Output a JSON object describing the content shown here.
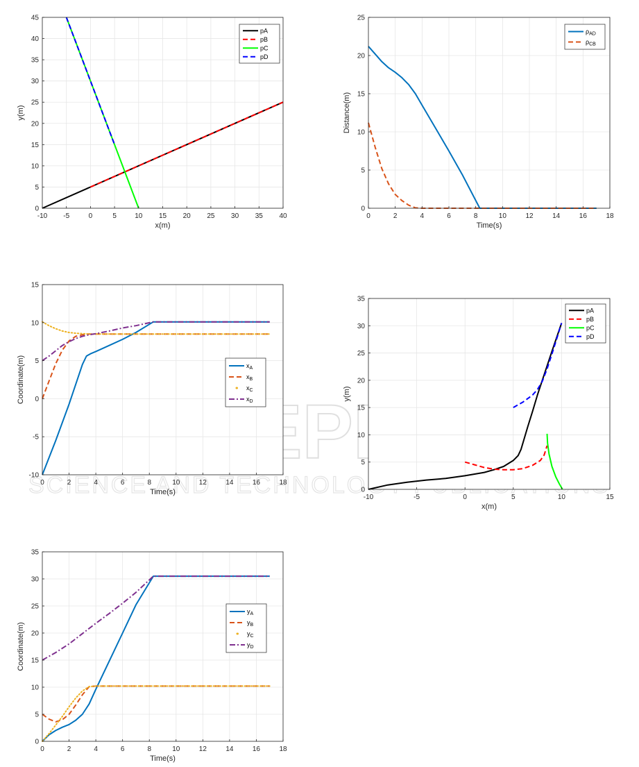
{
  "watermark": {
    "main": "SCITEPRESS",
    "sub": "SCIENCE AND TECHNOLOGY PUBLICATIONS"
  },
  "colors": {
    "black": "#000000",
    "red": "#ff0000",
    "green": "#00ff00",
    "blue": "#0000ff",
    "mblue": "#0072bd",
    "morange": "#d95319",
    "myellow": "#edb120",
    "mpurple": "#7e2f8e"
  },
  "chart_data": [
    {
      "id": "c1",
      "type": "line",
      "title": "",
      "xlabel": "x(m)",
      "ylabel": "y(m)",
      "xlim": [
        -10,
        40
      ],
      "ylim": [
        0,
        45
      ],
      "xticks": [
        -10,
        -5,
        0,
        5,
        10,
        15,
        20,
        25,
        30,
        35,
        40
      ],
      "yticks": [
        0,
        5,
        10,
        15,
        20,
        25,
        30,
        35,
        40,
        45
      ],
      "grid": true,
      "legend": "top-right",
      "series": [
        {
          "name": "pA",
          "legend": [
            {
              "t": "pA"
            }
          ],
          "color": "#000000",
          "style": "solid",
          "x": [
            -10,
            40
          ],
          "y": [
            0,
            25
          ]
        },
        {
          "name": "pB",
          "legend": [
            {
              "t": "pB"
            }
          ],
          "color": "#ff0000",
          "style": "dashed",
          "x": [
            0,
            40
          ],
          "y": [
            5,
            25
          ]
        },
        {
          "name": "pC",
          "legend": [
            {
              "t": "pC"
            }
          ],
          "color": "#00ff00",
          "style": "solid",
          "x": [
            -5,
            10
          ],
          "y": [
            45,
            0
          ]
        },
        {
          "name": "pD",
          "legend": [
            {
              "t": "pD"
            }
          ],
          "color": "#0000ff",
          "style": "dashed",
          "x": [
            -5,
            5
          ],
          "y": [
            45,
            15
          ]
        }
      ]
    },
    {
      "id": "c2",
      "type": "line",
      "title": "",
      "xlabel": "Time(s)",
      "ylabel": "Distance(m)",
      "xlim": [
        0,
        18
      ],
      "ylim": [
        0,
        25
      ],
      "xticks": [
        0,
        2,
        4,
        6,
        8,
        10,
        12,
        14,
        16,
        18
      ],
      "yticks": [
        0,
        5,
        10,
        15,
        20,
        25
      ],
      "grid": true,
      "legend": "top-right",
      "series": [
        {
          "name": "ρAD",
          "legend": [
            {
              "t": "ρ"
            },
            {
              "t": "AD",
              "sub": true
            }
          ],
          "color": "#0072bd",
          "style": "solid",
          "x": [
            0,
            0.5,
            1,
            1.5,
            2,
            2.5,
            3,
            3.5,
            4,
            5,
            6,
            7,
            8.3,
            10,
            12,
            14,
            16,
            17
          ],
          "y": [
            21.2,
            20.2,
            19.2,
            18.4,
            17.8,
            17.1,
            16.2,
            15,
            13.5,
            10.5,
            7.5,
            4.4,
            0,
            0,
            0,
            0,
            0,
            0
          ]
        },
        {
          "name": "ρCB",
          "legend": [
            {
              "t": "ρ"
            },
            {
              "t": "CB",
              "sub": true
            }
          ],
          "color": "#d95319",
          "style": "dashed",
          "x": [
            0,
            0.5,
            1,
            1.5,
            2,
            2.5,
            3,
            3.5,
            4,
            6,
            8,
            10,
            12,
            14,
            16,
            17
          ],
          "y": [
            11.2,
            8,
            5.2,
            3.2,
            1.8,
            1,
            0.4,
            0.05,
            0,
            0,
            0,
            0,
            0,
            0,
            0,
            0
          ]
        }
      ]
    },
    {
      "id": "c3",
      "type": "line",
      "title": "",
      "xlabel": "Time(s)",
      "ylabel": "Coordinate(m)",
      "xlim": [
        0,
        18
      ],
      "ylim": [
        -10,
        15
      ],
      "xticks": [
        0,
        2,
        4,
        6,
        8,
        10,
        12,
        14,
        16,
        18
      ],
      "yticks": [
        -10,
        -5,
        0,
        5,
        10,
        15
      ],
      "grid": true,
      "legend": "right",
      "series": [
        {
          "name": "xA",
          "legend": [
            {
              "t": "x"
            },
            {
              "t": "A",
              "sub": true
            }
          ],
          "color": "#0072bd",
          "style": "solid",
          "x": [
            0,
            1,
            2,
            3,
            3.3,
            3.6,
            4,
            5,
            6,
            7,
            8.3,
            10,
            12,
            14,
            16,
            17
          ],
          "y": [
            -10,
            -5.5,
            -0.7,
            4.5,
            5.6,
            5.9,
            6.2,
            7,
            7.8,
            8.7,
            10.1,
            10.1,
            10.1,
            10.1,
            10.1,
            10.1
          ]
        },
        {
          "name": "xB",
          "legend": [
            {
              "t": "x"
            },
            {
              "t": "B",
              "sub": true
            }
          ],
          "color": "#d95319",
          "style": "dashed",
          "x": [
            0,
            0.5,
            1,
            1.5,
            2,
            2.5,
            3,
            3.5,
            4,
            6,
            8,
            10,
            12,
            14,
            16,
            17
          ],
          "y": [
            0,
            2.3,
            4.6,
            6.4,
            7.6,
            8.2,
            8.4,
            8.5,
            8.5,
            8.5,
            8.5,
            8.5,
            8.5,
            8.5,
            8.5,
            8.5
          ]
        },
        {
          "name": "xC",
          "legend": [
            {
              "t": "x"
            },
            {
              "t": "C",
              "sub": true
            }
          ],
          "color": "#edb120",
          "style": "dotted",
          "x": [
            0,
            0.5,
            1,
            1.5,
            2,
            2.5,
            3,
            3.5,
            4,
            6,
            8,
            10,
            12,
            14,
            16,
            17
          ],
          "y": [
            10.1,
            9.6,
            9.2,
            8.9,
            8.7,
            8.6,
            8.55,
            8.5,
            8.5,
            8.5,
            8.5,
            8.5,
            8.5,
            8.5,
            8.5,
            8.5
          ]
        },
        {
          "name": "xD",
          "legend": [
            {
              "t": "x"
            },
            {
              "t": "D",
              "sub": true
            }
          ],
          "color": "#7e2f8e",
          "style": "dashdot",
          "x": [
            0,
            0.5,
            1,
            1.5,
            2,
            2.5,
            3,
            3.5,
            4,
            5,
            6,
            7,
            8.3,
            10,
            12,
            14,
            16,
            17
          ],
          "y": [
            5,
            5.6,
            6.3,
            7,
            7.5,
            7.9,
            8.2,
            8.4,
            8.55,
            8.9,
            9.3,
            9.6,
            10.1,
            10.1,
            10.1,
            10.1,
            10.1,
            10.1
          ]
        }
      ]
    },
    {
      "id": "c4",
      "type": "line",
      "title": "",
      "xlabel": "x(m)",
      "ylabel": "y(m)",
      "xlim": [
        -10,
        15
      ],
      "ylim": [
        0,
        35
      ],
      "xticks": [
        -10,
        -5,
        0,
        5,
        10,
        15
      ],
      "yticks": [
        0,
        5,
        10,
        15,
        20,
        25,
        30,
        35
      ],
      "grid": true,
      "legend": "top-right",
      "series": [
        {
          "name": "pA",
          "legend": [
            {
              "t": "pA"
            }
          ],
          "color": "#000000",
          "style": "solid",
          "x": [
            -10,
            -8,
            -6,
            -4,
            -2,
            0,
            1,
            2,
            3,
            4,
            5,
            5.5,
            5.8,
            6,
            6.5,
            7,
            7.5,
            8,
            9,
            10
          ],
          "y": [
            0,
            0.8,
            1.3,
            1.7,
            2,
            2.5,
            2.8,
            3.1,
            3.6,
            4.2,
            5.3,
            6.2,
            7.3,
            8.5,
            11.5,
            14.3,
            17.3,
            20,
            25.3,
            30.5
          ]
        },
        {
          "name": "pB",
          "legend": [
            {
              "t": "pB"
            }
          ],
          "color": "#ff0000",
          "style": "dashed",
          "x": [
            0,
            1,
            2,
            3,
            4,
            5,
            6,
            7,
            7.8,
            8.2,
            8.5
          ],
          "y": [
            5,
            4.5,
            4,
            3.7,
            3.6,
            3.6,
            3.8,
            4.4,
            5.3,
            6.3,
            8
          ]
        },
        {
          "name": "pC",
          "legend": [
            {
              "t": "pC"
            }
          ],
          "color": "#00ff00",
          "style": "solid",
          "x": [
            8.5,
            8.55,
            8.7,
            9,
            9.4,
            9.8,
            10.1
          ],
          "y": [
            10.2,
            8.5,
            6.5,
            4.2,
            2.3,
            0.9,
            0
          ]
        },
        {
          "name": "pD",
          "legend": [
            {
              "t": "pD"
            }
          ],
          "color": "#0000ff",
          "style": "dashed",
          "x": [
            5,
            6,
            7,
            7.5,
            8,
            8.5,
            9,
            9.5,
            10
          ],
          "y": [
            15,
            16,
            17.3,
            18.3,
            19.8,
            22.1,
            24.8,
            27.6,
            30.5
          ]
        }
      ]
    },
    {
      "id": "c5",
      "type": "line",
      "title": "",
      "xlabel": "Time(s)",
      "ylabel": "Coordinate(m)",
      "xlim": [
        0,
        18
      ],
      "ylim": [
        0,
        35
      ],
      "xticks": [
        0,
        2,
        4,
        6,
        8,
        10,
        12,
        14,
        16,
        18
      ],
      "yticks": [
        0,
        5,
        10,
        15,
        20,
        25,
        30,
        35
      ],
      "grid": true,
      "legend": "top-right",
      "series": [
        {
          "name": "yA",
          "legend": [
            {
              "t": "y"
            },
            {
              "t": "A",
              "sub": true
            }
          ],
          "color": "#0072bd",
          "style": "solid",
          "x": [
            0,
            0.5,
            1,
            1.5,
            2,
            2.5,
            3,
            3.5,
            4,
            5,
            6,
            7,
            8.3,
            10,
            12,
            14,
            16,
            17
          ],
          "y": [
            0,
            1.2,
            2,
            2.6,
            3.1,
            3.9,
            5,
            6.9,
            9.6,
            14.8,
            20,
            25.2,
            30.5,
            30.5,
            30.5,
            30.5,
            30.5,
            30.5
          ]
        },
        {
          "name": "yB",
          "legend": [
            {
              "t": "y"
            },
            {
              "t": "B",
              "sub": true
            }
          ],
          "color": "#d95319",
          "style": "dashed",
          "x": [
            0,
            0.5,
            1,
            1.5,
            2,
            2.5,
            3,
            3.5,
            4,
            6,
            8,
            10,
            12,
            14,
            16,
            17
          ],
          "y": [
            5,
            4.1,
            3.6,
            4,
            5,
            6.7,
            8.6,
            10.1,
            10.2,
            10.2,
            10.2,
            10.2,
            10.2,
            10.2,
            10.2,
            10.2
          ]
        },
        {
          "name": "yC",
          "legend": [
            {
              "t": "y"
            },
            {
              "t": "C",
              "sub": true
            }
          ],
          "color": "#edb120",
          "style": "dotted",
          "x": [
            0,
            0.5,
            1,
            1.5,
            2,
            2.5,
            3,
            3.5,
            4,
            6,
            8,
            10,
            12,
            14,
            16,
            17
          ],
          "y": [
            0,
            1.4,
            3,
            4.6,
            6.4,
            8,
            9.3,
            10.1,
            10.2,
            10.2,
            10.2,
            10.2,
            10.2,
            10.2,
            10.2,
            10.2
          ]
        },
        {
          "name": "yD",
          "legend": [
            {
              "t": "y"
            },
            {
              "t": "D",
              "sub": true
            }
          ],
          "color": "#7e2f8e",
          "style": "dashdot",
          "x": [
            0,
            1,
            2,
            3,
            4,
            5,
            6,
            7,
            8.3,
            10,
            12,
            14,
            16,
            17
          ],
          "y": [
            15,
            16.4,
            18,
            19.9,
            21.8,
            23.6,
            25.5,
            27.5,
            30.5,
            30.5,
            30.5,
            30.5,
            30.5,
            30.5
          ]
        }
      ]
    }
  ]
}
